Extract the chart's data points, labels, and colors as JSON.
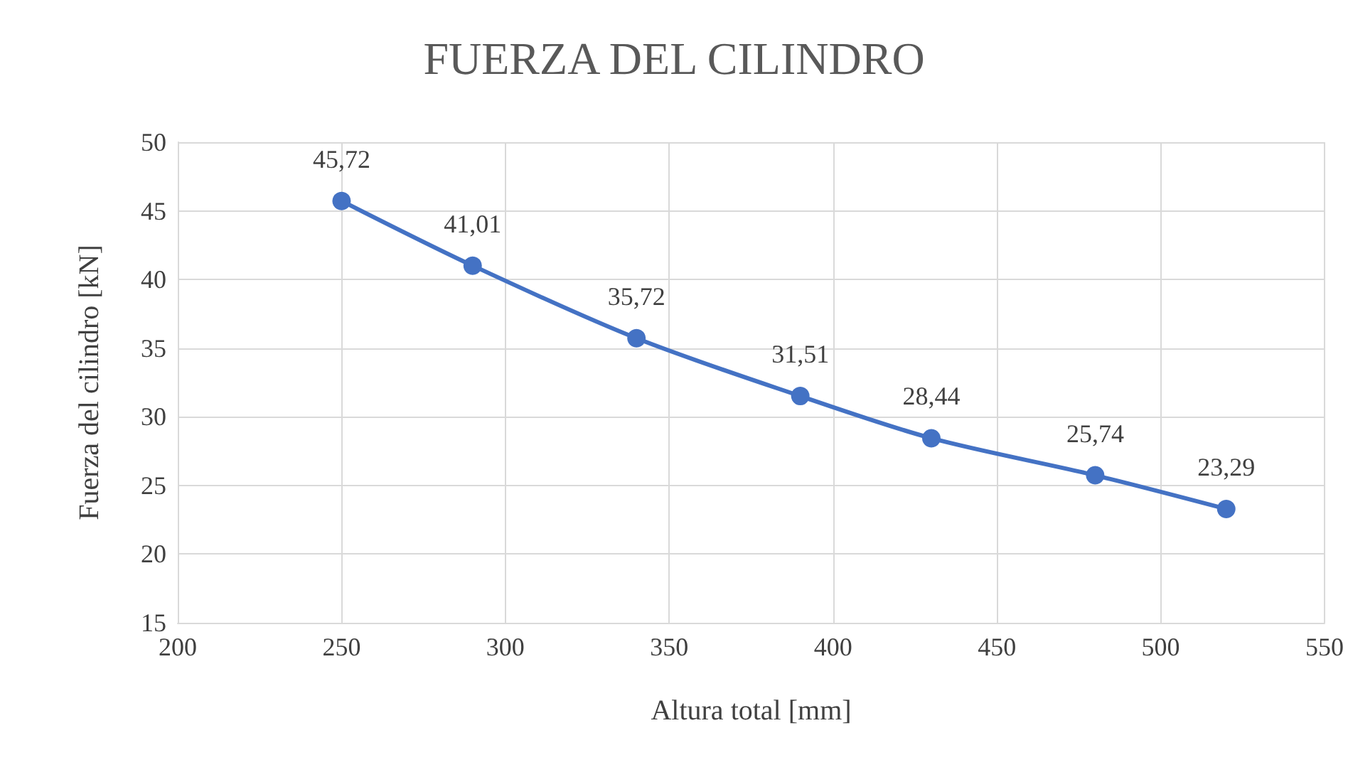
{
  "chart_data": {
    "type": "line",
    "title": "FUERZA DEL CILINDRO",
    "xlabel": "Altura total [mm]",
    "ylabel": "Fuerza del cilindro [kN]",
    "x": [
      250,
      290,
      340,
      390,
      430,
      480,
      520
    ],
    "series": [
      {
        "color": "#4472c4",
        "values": [
          45.72,
          41.01,
          35.72,
          31.51,
          28.44,
          25.74,
          23.29
        ],
        "value_labels": [
          "45,72",
          "41,01",
          "35,72",
          "31,51",
          "28,44",
          "25,74",
          "23,29"
        ]
      }
    ],
    "xlim": [
      200,
      550
    ],
    "xticks": [
      200,
      250,
      300,
      350,
      400,
      450,
      500,
      550
    ],
    "ylim": [
      15,
      50
    ],
    "yticks": [
      15,
      20,
      25,
      30,
      35,
      40,
      45,
      50
    ],
    "grid": true,
    "marker": "circle",
    "line_style": "solid"
  }
}
